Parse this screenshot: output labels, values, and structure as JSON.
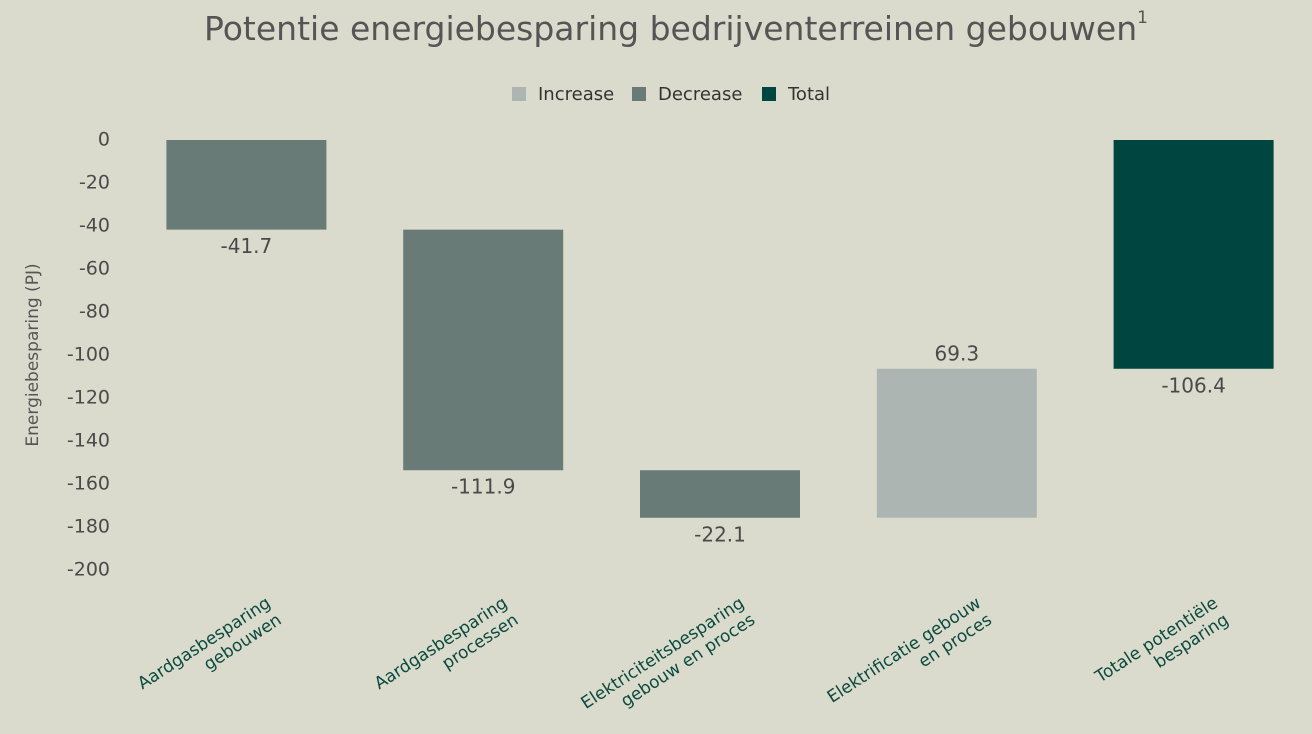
{
  "chart_data": {
    "type": "waterfall",
    "title": "Potentie energiebesparing bedrijventerreinen gebouwen",
    "title_superscript": "1",
    "ylabel": "Energiebesparing (PJ)",
    "categories": [
      [
        "Aardgasbesparing",
        "gebouwen"
      ],
      [
        "Aardgasbesparing",
        "processen"
      ],
      [
        "Elektriciteitsbesparing",
        "gebouw en proces"
      ],
      [
        "Elektrificatie gebouw",
        "en proces"
      ],
      [
        "Totale potentiële",
        "besparing"
      ]
    ],
    "series": [
      {
        "name": "Increase",
        "color": "#adb5b3",
        "values": [
          null,
          null,
          null,
          69.3,
          null
        ]
      },
      {
        "name": "Decrease",
        "color": "#697b77",
        "values": [
          -41.7,
          -111.9,
          -22.1,
          null,
          null
        ]
      },
      {
        "name": "Total",
        "color": "#004540",
        "is_total": true,
        "values": [
          null,
          null,
          null,
          null,
          -106.4
        ]
      }
    ],
    "ylim": [
      -200,
      0
    ],
    "yticks": [
      0,
      -20,
      -40,
      -60,
      -80,
      -100,
      -120,
      -140,
      -160,
      -180,
      -200
    ],
    "legend": "top"
  }
}
